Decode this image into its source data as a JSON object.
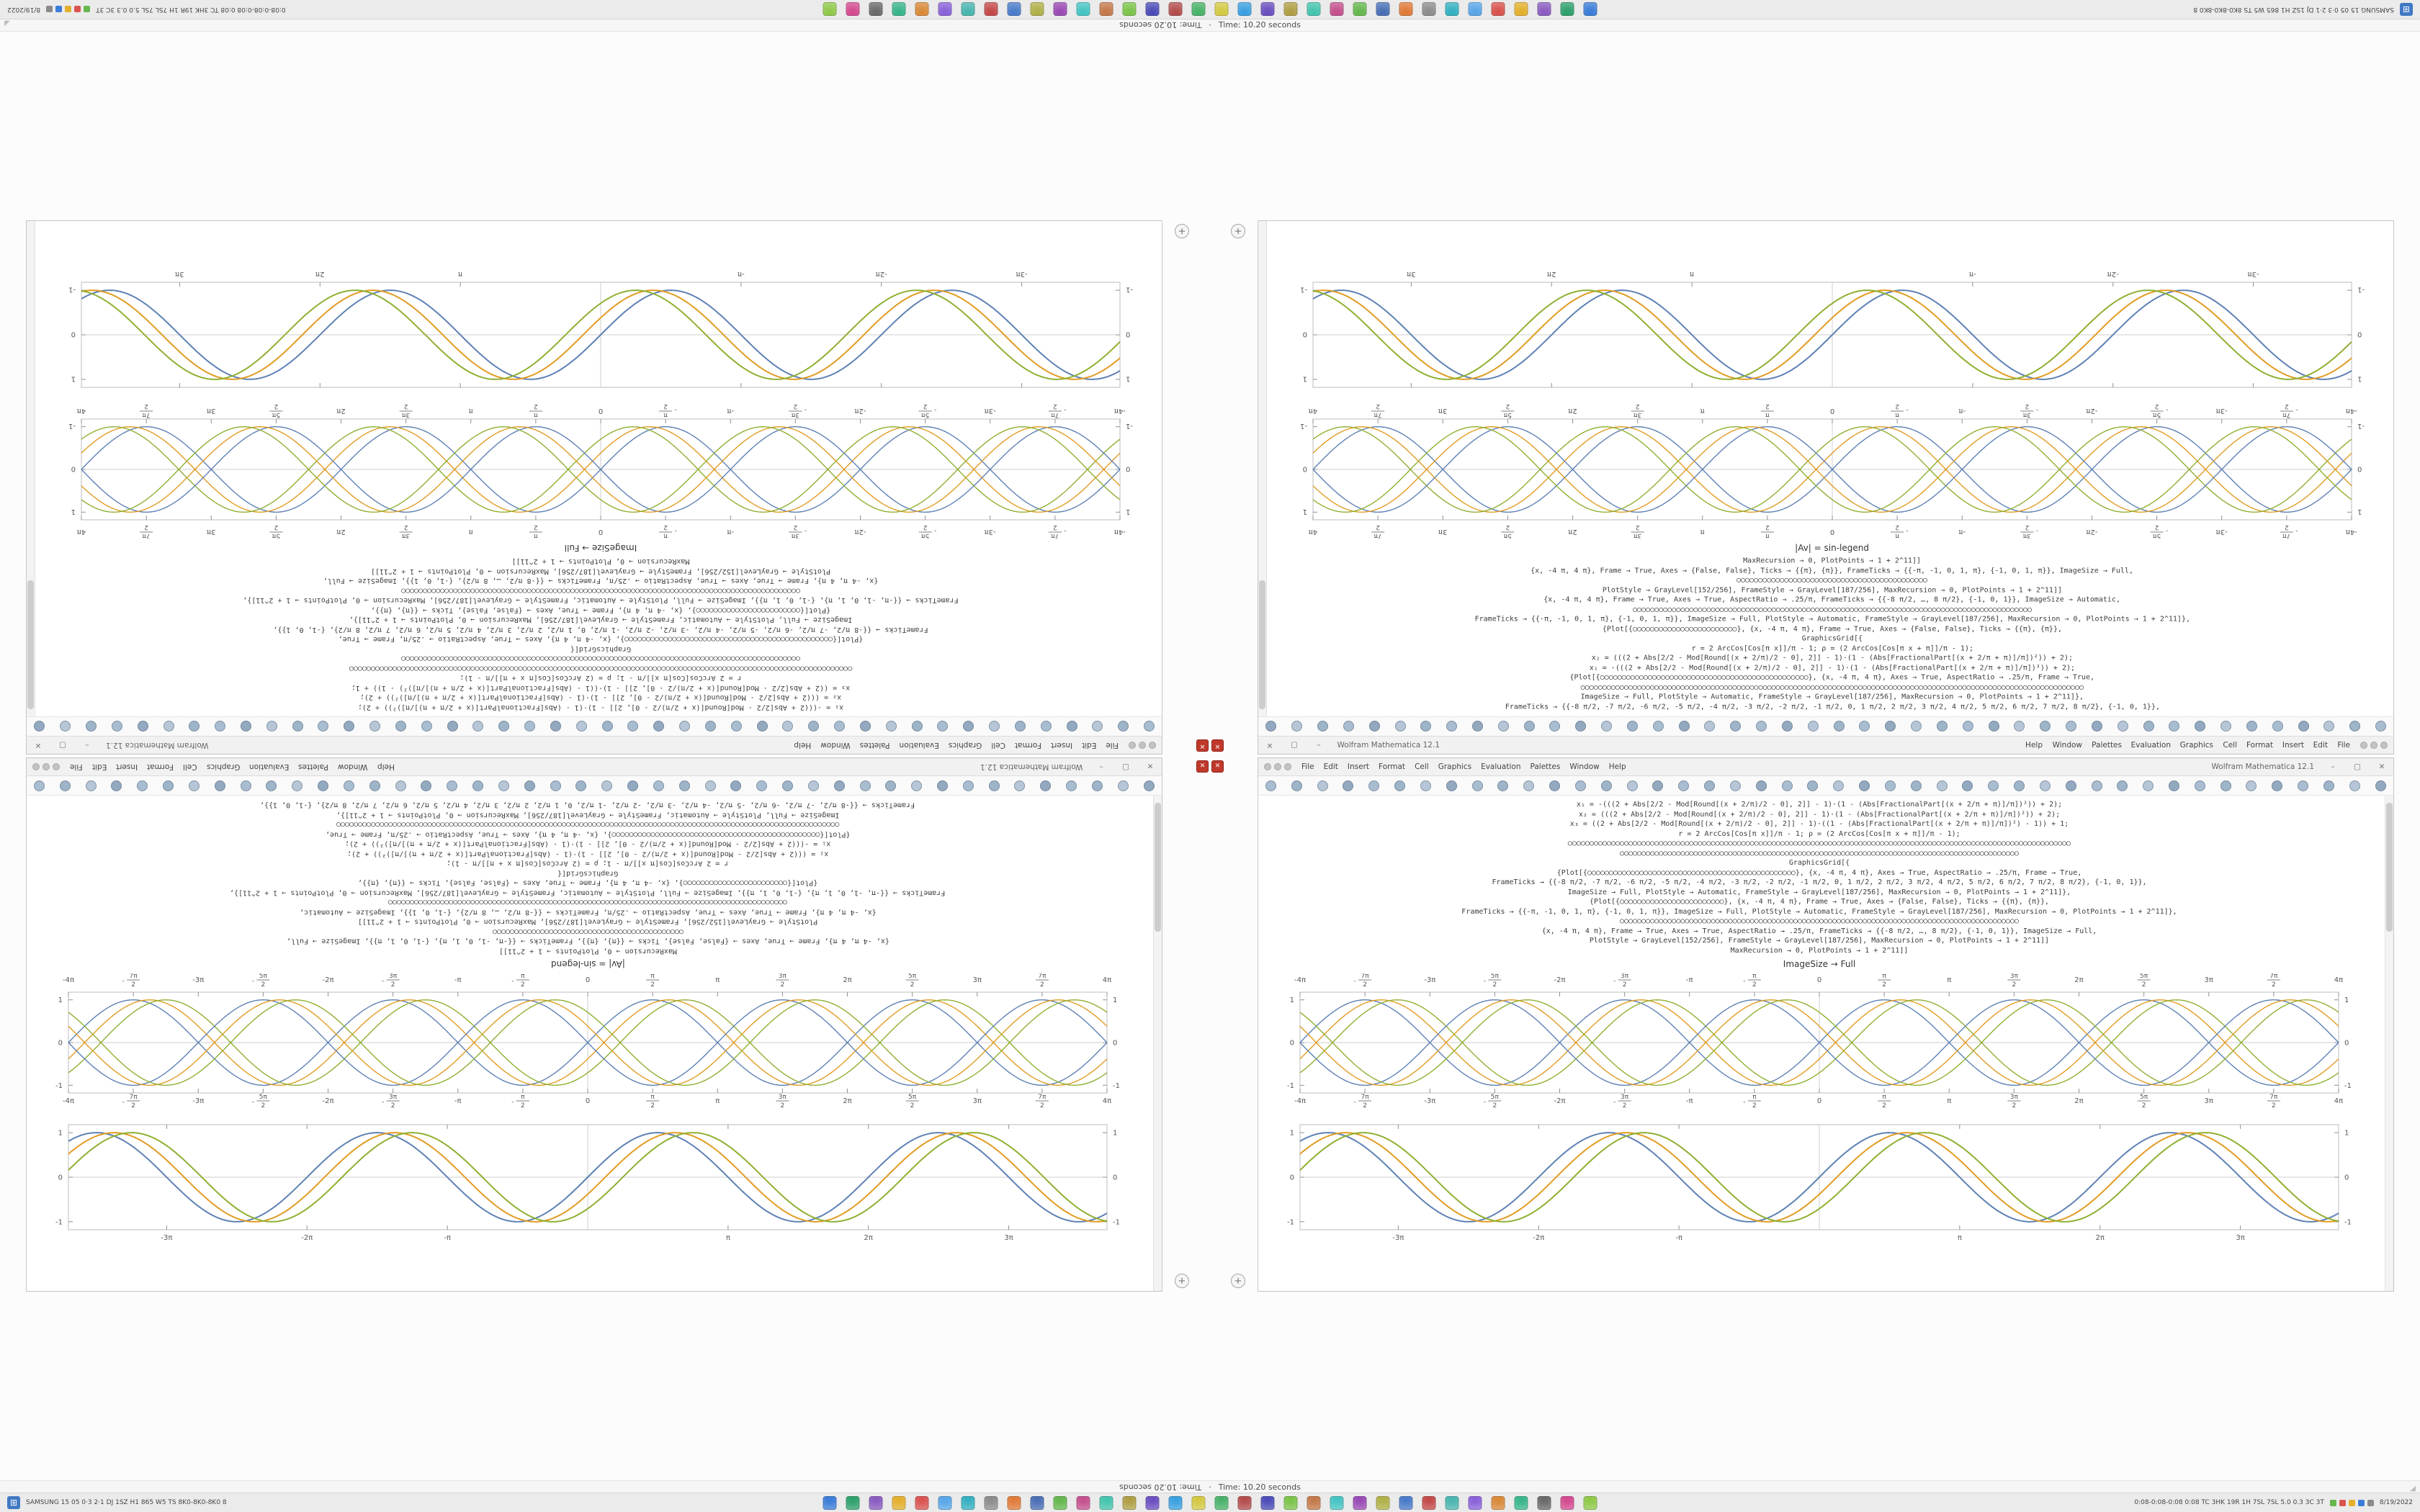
{
  "menu_bar": {
    "menus": [
      "File",
      "Edit",
      "Insert",
      "Format",
      "Cell",
      "Graphics",
      "Evaluation",
      "Palettes",
      "Window",
      "Help"
    ],
    "window_controls": {
      "minimize": "–",
      "maximize": "▢",
      "close": "✕"
    }
  },
  "toolbar": {
    "icons_per_window": 44,
    "icon_colors": [
      "#a9bdd1",
      "#9eb4c8",
      "#b6c6d6",
      "#93a9bf"
    ]
  },
  "center_badges": {
    "glyph": "✕",
    "color": "#c0392b"
  },
  "corner_button_glyph": "+",
  "windows": {
    "left": {
      "title": "Wolfram Mathematica 12.1",
      "label": "|Av| = sin-legend",
      "code": [
        "FrameTicks → {{-8 π/2, -7 π/2, -6 π/2, -5 π/2, -4 π/2, -3 π/2, -2 π/2, -1 π/2, 0, 1 π/2, 2 π/2, 3 π/2, 4 π/2, 5 π/2, 6 π/2, 7 π/2, 8 π/2}, {-1, 0, 1}},",
        "ImageSize → Full, PlotStyle → Automatic, FrameStyle → GrayLevel[187/256], MaxRecursion → 0, PlotPoints → 1 + 2^11]},",
        "○○○○○○○○○○○○○○○○○○○○○○○○○○○○○○○○○○○○○○○○○○○○○○○○○○○○○○○○○○○○○○○○○○○○○○○○○○○○○○○○○○○○○○○○○○○○○○○○○○○○○○○○○○○○○○○○○○○○",
        "{Plot[{○○○○○○○○○○○○○○○○○○○○○○○○○○○○○○○○○○○○○○○○○○○○○○○○}, {x, -4 π, 4 π}, Axes → True, AspectRatio → .25/π, Frame → True,",
        "x₁ = -(((2 + Abs[2/2 - Mod[Round[(x + 2/π)/2 - 0], 2]] - 1)·(1 - (Abs[FractionalPart[(x + 2/π + π)]/π])²)) + 2);",
        "x₂ = (((2 + Abs[2/2 - Mod[Round[(x + 2/π)/2 - 0], 2]] - 1)·(1 - (Abs[FractionalPart[(x + 2/π + π)]/π])²)) + 2);",
        "r = 2 ArcCos[Cos[π x]]/π - 1;      ρ = (2 ArcCos[Cos[π x + π]]/π - 1);",
        "GraphicsGrid[{",
        "{Plot[{○○○○○○○○○○○○○○○○○○○○○○○○}, {x, -4 π, 4 π}, Frame → True, Axes → {False, False}, Ticks → {{π}, {π}},",
        "FrameTicks → {{-π, -1, 0, 1, π}, {-1, 0, 1, π}}, ImageSize → Full, PlotStyle → Automatic, FrameStyle → GrayLevel[187/256], MaxRecursion → 0, PlotPoints → 1 + 2^11]},",
        "○○○○○○○○○○○○○○○○○○○○○○○○○○○○○○○○○○○○○○○○○○○○○○○○○○○○○○○○○○○○○○○○○○○○○○○○○○○○○○○○○○○○○○○○○○○○",
        "{x, -4 π, 4 π}, Frame → True, Axes → True, AspectRatio → .25/π, FrameTicks → {{-8 π/2, …, 8 π/2}, {-1, 0, 1}}, ImageSize → Automatic,",
        "PlotStyle → GrayLevel[152/256], FrameStyle → GrayLevel[187/256], MaxRecursion → 0, PlotPoints → 1 + 2^11]]",
        "○○○○○○○○○○○○○○○○○○○○○○○○○○○○○○○○○○○○○○○○○○○○",
        "{x, -4 π, 4 π}, Frame → True, Axes → {False, False}, Ticks → {{π}, {π}}, FrameTicks → {{-π, -1, 0, 1, π}, {-1, 0, 1, π}}, ImageSize → Full,",
        "MaxRecursion → 0, PlotPoints → 1 + 2^11]]"
      ]
    },
    "right": {
      "title": "Wolfram Mathematica 12.1",
      "label": "ImageSize → Full",
      "code": [
        "x₁ = -(((2 + Abs[2/2 - Mod[Round[(x + 2/π)/2 - 0], 2]] - 1)·(1 - (Abs[FractionalPart[(x + 2/π + π)]/π])²)) + 2);",
        "x₂ = (((2 + Abs[2/2 - Mod[Round[(x + 2/π)/2 - 0], 2]] - 1)·(1 - (Abs[FractionalPart[(x + 2/π + π)]/π])²)) + 2);",
        "x₃ = ((2 + Abs[2/2 - Mod[Round[(x + 2/π)/2 - 0], 2]] - 1)·((1 - (Abs[FractionalPart[(x + 2/π + π)]/π])²) - 1)) + 1;",
        "r = 2 ArcCos[Cos[π x]]/π - 1;      ρ = (2 ArcCos[Cos[π x + π]]/π - 1);",
        "○○○○○○○○○○○○○○○○○○○○○○○○○○○○○○○○○○○○○○○○○○○○○○○○○○○○○○○○○○○○○○○○○○○○○○○○○○○○○○○○○○○○○○○○○○○○○○○○○○○○○○○○○○○○○○○○○○○○",
        "○○○○○○○○○○○○○○○○○○○○○○○○○○○○○○○○○○○○○○○○○○○○○○○○○○○○○○○○○○○○○○○○○○○○○○○○○○○○○○○○○○○○○○○○○○○○",
        "GraphicsGrid[{",
        "{Plot[{○○○○○○○○○○○○○○○○○○○○○○○○○○○○○○○○○○○○○○○○○○○○○○○○}, {x, -4 π, 4 π}, Axes → True, AspectRatio → .25/π, Frame → True,",
        "FrameTicks → {{-8 π/2, -7 π/2, -6 π/2, -5 π/2, -4 π/2, -3 π/2, -2 π/2, -1 π/2, 0, 1 π/2, 2 π/2, 3 π/2, 4 π/2, 5 π/2, 6 π/2, 7 π/2, 8 π/2}, {-1, 0, 1}},",
        "ImageSize → Full, PlotStyle → Automatic, FrameStyle → GrayLevel[187/256], MaxRecursion → 0, PlotPoints → 1 + 2^11]},",
        "{Plot[{○○○○○○○○○○○○○○○○○○○○○○○○}, {x, -4 π, 4 π}, Frame → True, Axes → {False, False}, Ticks → {{π}, {π}},",
        "FrameTicks → {{-π, -1, 0, 1, π}, {-1, 0, 1, π}}, ImageSize → Full, PlotStyle → Automatic, FrameStyle → GrayLevel[187/256], MaxRecursion → 0, PlotPoints → 1 + 2^11]},",
        "○○○○○○○○○○○○○○○○○○○○○○○○○○○○○○○○○○○○○○○○○○○○○○○○○○○○○○○○○○○○○○○○○○○○○○○○○○○○○○○○○○○○○○○○○○○○",
        "{x, -4 π, 4 π}, Frame → True, Axes → True, AspectRatio → .25/π, FrameTicks → {{-8 π/2, …, 8 π/2}, {-1, 0, 1}}, ImageSize → Full,",
        "PlotStyle → GrayLevel[152/256], FrameStyle → GrayLevel[187/256], MaxRecursion → 0, PlotPoints → 1 + 2^11]]",
        "MaxRecursion → 0, PlotPoints → 1 + 2^11]]"
      ]
    }
  },
  "chart_data": [
    {
      "id": "plot-braided-sines",
      "type": "line",
      "title": "",
      "xlabel": "",
      "ylabel": "",
      "x_range_pi": [
        -4,
        4
      ],
      "ylim": [
        -1.18,
        1.18
      ],
      "frame": true,
      "center_axes": true,
      "labels_top": true,
      "stroke_width": 1.4,
      "series": [
        {
          "name": "sin(x)",
          "phase_pi": 0,
          "sign": 1,
          "color": "#5e81b5"
        },
        {
          "name": "sin(x - π/8)",
          "phase_pi": 0.125,
          "sign": 1,
          "color": "#e19c24"
        },
        {
          "name": "sin(x - π/4)",
          "phase_pi": 0.25,
          "sign": 1,
          "color": "#8fb032"
        },
        {
          "name": "-sin(x)",
          "phase_pi": 0,
          "sign": -1,
          "color": "#5e81b5"
        },
        {
          "name": "-sin(x - π/8)",
          "phase_pi": 0.125,
          "sign": -1,
          "color": "#e19c24"
        },
        {
          "name": "-sin(x - π/4)",
          "phase_pi": 0.25,
          "sign": -1,
          "color": "#8fb032"
        }
      ],
      "x_ticks": [
        {
          "v": -4,
          "l": "-4π"
        },
        {
          "v": -3.5,
          "l": "-7π/2"
        },
        {
          "v": -3,
          "l": "-3π"
        },
        {
          "v": -2.5,
          "l": "-5π/2"
        },
        {
          "v": -2,
          "l": "-2π"
        },
        {
          "v": -1.5,
          "l": "-3π/2"
        },
        {
          "v": -1,
          "l": "-π"
        },
        {
          "v": -0.5,
          "l": "-π/2"
        },
        {
          "v": 0,
          "l": "0"
        },
        {
          "v": 0.5,
          "l": "π/2"
        },
        {
          "v": 1,
          "l": "π"
        },
        {
          "v": 1.5,
          "l": "3π/2"
        },
        {
          "v": 2,
          "l": "2π"
        },
        {
          "v": 2.5,
          "l": "5π/2"
        },
        {
          "v": 3,
          "l": "3π"
        },
        {
          "v": 3.5,
          "l": "7π/2"
        },
        {
          "v": 4,
          "l": "4π"
        }
      ],
      "y_ticks": [
        {
          "v": -1,
          "l": "-1"
        },
        {
          "v": 0,
          "l": "0"
        },
        {
          "v": 1,
          "l": "1"
        }
      ]
    },
    {
      "id": "plot-phased-sines",
      "type": "line",
      "title": "",
      "xlabel": "",
      "ylabel": "",
      "x_range_pi": [
        -3.7,
        3.7
      ],
      "ylim": [
        -1.18,
        1.18
      ],
      "frame": true,
      "center_axes": true,
      "labels_top": false,
      "stroke_width": 2,
      "series": [
        {
          "name": "sin(x)",
          "phase_pi": 0,
          "sign": 1,
          "color": "#5e81b5"
        },
        {
          "name": "sin(x - π/8)",
          "phase_pi": 0.125,
          "sign": 1,
          "color": "#e19c24"
        },
        {
          "name": "sin(x - π/4)",
          "phase_pi": 0.25,
          "sign": 1,
          "color": "#8fb032"
        }
      ],
      "x_ticks": [
        {
          "v": -3,
          "l": "-3π"
        },
        {
          "v": -2,
          "l": "-2π"
        },
        {
          "v": -1,
          "l": "-π"
        },
        {
          "v": 1,
          "l": "π"
        },
        {
          "v": 2,
          "l": "2π"
        },
        {
          "v": 3,
          "l": "3π"
        }
      ],
      "y_ticks": [
        {
          "v": -1,
          "l": "-1"
        },
        {
          "v": 0,
          "l": "0"
        },
        {
          "v": 1,
          "l": "1"
        }
      ]
    }
  ],
  "status_bar": {
    "time_text": "Time: 10.20 seconds",
    "separator": "·",
    "grip": "◢"
  },
  "taskbar": {
    "start_glyph": "⊞",
    "left_text": "SAMSUNG 15 05 0·3 2·1 DJ 1SZ H1 865 W5 TS 8K0-8K0-8K0 8",
    "right_text": "0:08-0:08-0:08 0:08 TC 3HK 19R 1H 7SL 7SL 5.0 0.3 3C 3T",
    "date": "8/19/2022",
    "app_colors": [
      "#3b7dd8",
      "#2ea06c",
      "#8a5bc0",
      "#e3b02e",
      "#d9534f",
      "#58a6e8",
      "#35b0c0",
      "#8d8d8d",
      "#e07b39",
      "#4a6fb5",
      "#66b74e",
      "#c4508e",
      "#45c4ad",
      "#b09f45",
      "#6b4fc0",
      "#3aa0e0",
      "#d4c944",
      "#49b26a",
      "#b34d4d",
      "#4c4cb8",
      "#7cc44b",
      "#c4794a",
      "#46c4c4",
      "#9a4ab5",
      "#b0b04a",
      "#4a7bc9",
      "#c44a4a",
      "#4ab5b0",
      "#8a62d9",
      "#d98a39",
      "#39b58a",
      "#6a6a6a",
      "#d44a90",
      "#90c94a"
    ],
    "tray_colors": [
      "#66b74e",
      "#d9534f",
      "#e3b02e",
      "#3b7dd8",
      "#8a8a8a"
    ]
  }
}
